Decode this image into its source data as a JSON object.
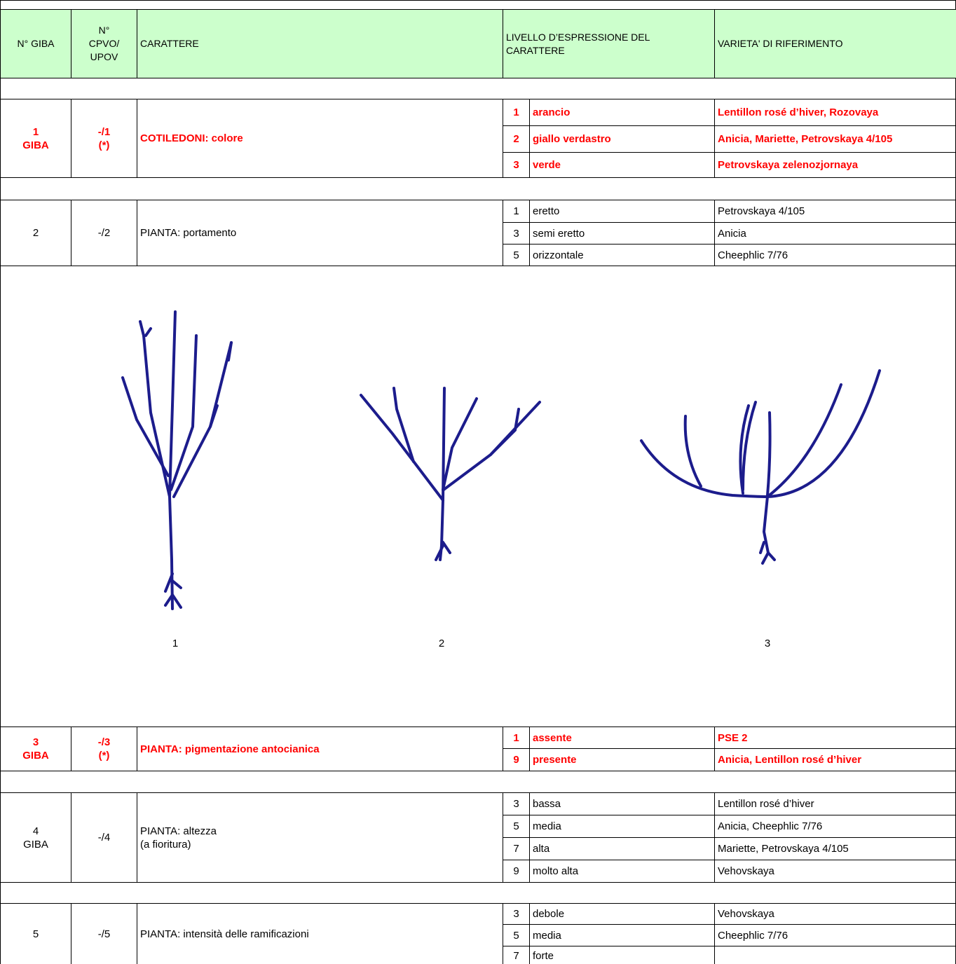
{
  "header": {
    "fill": "#ccffcc",
    "cells": [
      [
        "N° GIBA"
      ],
      [
        "N°",
        "CPVO/",
        "UPOV"
      ],
      [
        "CARATTERE"
      ],
      [
        "LIVELLO D’ESPRESSIONE DEL",
        "CARATTERE"
      ],
      [
        "VARIETA' DI RIFERIMENTO"
      ]
    ]
  },
  "characters": [
    {
      "giba": [
        "1",
        "GIBA"
      ],
      "upov": [
        "-/1",
        "(*)"
      ],
      "name": [
        "COTILEDONI: colore"
      ],
      "color": "#ff0000",
      "bold": true,
      "levels": [
        {
          "note": 1,
          "label": "arancio",
          "varieties": "Lentillon rosé d’hiver, Rozovaya"
        },
        {
          "note": 2,
          "label": "giallo verdastro",
          "varieties": "Anicia, Mariette, Petrovskaya 4/105"
        },
        {
          "note": 3,
          "label": "verde",
          "varieties": "Petrovskaya zelenozjornaya"
        }
      ]
    },
    {
      "giba": [
        "2"
      ],
      "upov": [
        "-/2"
      ],
      "name": [
        "PIANTA: portamento"
      ],
      "levels": [
        {
          "note": 1,
          "label": "eretto",
          "varieties": "Petrovskaya 4/105"
        },
        {
          "note": 3,
          "label": "semi eretto",
          "varieties": "Anicia"
        },
        {
          "note": 5,
          "label": "orizzontale",
          "varieties": "Cheephlic 7/76"
        }
      ]
    },
    {
      "giba": [
        "3",
        "GIBA"
      ],
      "upov": [
        "-/3",
        "(*)"
      ],
      "name": [
        "PIANTA: pigmentazione antocianica"
      ],
      "color": "#ff0000",
      "bold": true,
      "levels": [
        {
          "note": 1,
          "label": "assente",
          "varieties": "PSE 2"
        },
        {
          "note": 9,
          "label": "presente",
          "varieties": "Anicia, Lentillon rosé d’hiver"
        }
      ]
    },
    {
      "giba": [
        "4",
        "GIBA"
      ],
      "upov": [
        "-/4"
      ],
      "name": [
        "PIANTA: altezza",
        "(a fioritura)"
      ],
      "levels": [
        {
          "note": 3,
          "label": "bassa",
          "varieties": "Lentillon rosé d’hiver"
        },
        {
          "note": 5,
          "label": "media",
          "varieties": "Anicia, Cheephlic 7/76"
        },
        {
          "note": 7,
          "label": "alta",
          "varieties": "Mariette, Petrovskaya 4/105"
        },
        {
          "note": 9,
          "label": "molto alta",
          "varieties": "Vehovskaya"
        }
      ]
    },
    {
      "giba": [
        "5"
      ],
      "upov": [
        "-/5"
      ],
      "name": [
        "PIANTA: intensità delle ramificazioni"
      ],
      "levels": [
        {
          "note": 3,
          "label": "debole",
          "varieties": "Vehovskaya"
        },
        {
          "note": 5,
          "label": "media",
          "varieties": "Cheephlic 7/76"
        },
        {
          "note": 7,
          "label": "forte"
        }
      ]
    }
  ],
  "figure": {
    "labels": [
      "1",
      "2",
      "3"
    ]
  }
}
